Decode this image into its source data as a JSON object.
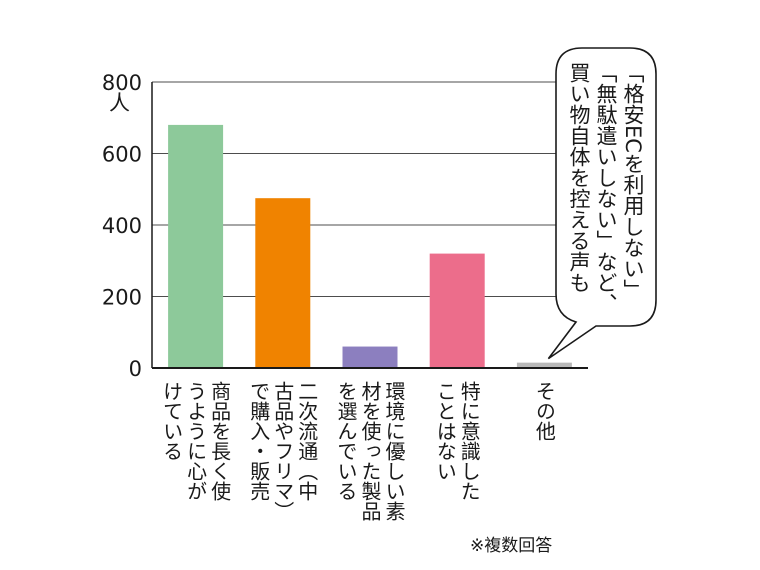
{
  "chart_data": {
    "type": "bar",
    "y_unit": "人",
    "ylim": [
      0,
      800
    ],
    "yticks": [
      0,
      200,
      400,
      600,
      800
    ],
    "grid": true,
    "categories": [
      "商品を長く使うように心がけている",
      "二次流通（中古品やフリマ）で購入・販売",
      "環境に優しい素材を使った製品を選んでいる",
      "特に意識したことはない",
      "その他"
    ],
    "category_lines": [
      [
        "商品を長く使",
        "うように心が",
        "けている"
      ],
      [
        "二次流通（中",
        "古品やフリマ）",
        "で購入・販売"
      ],
      [
        "環境に優しい素",
        "材を使った製品",
        "を選んでいる"
      ],
      [
        "特に意識した",
        "ことはない"
      ],
      [
        "その他"
      ]
    ],
    "values": [
      680,
      475,
      60,
      320,
      15
    ],
    "colors": [
      "#8dc99a",
      "#f08300",
      "#8c7fbf",
      "#ec6d8b",
      "#b9b9b9"
    ],
    "annotation_lines": [
      "「格安ECを利用しない」",
      "「無駄遣いしない」など、",
      "買い物自体を控える声も"
    ],
    "footnote": "※複数回答"
  }
}
